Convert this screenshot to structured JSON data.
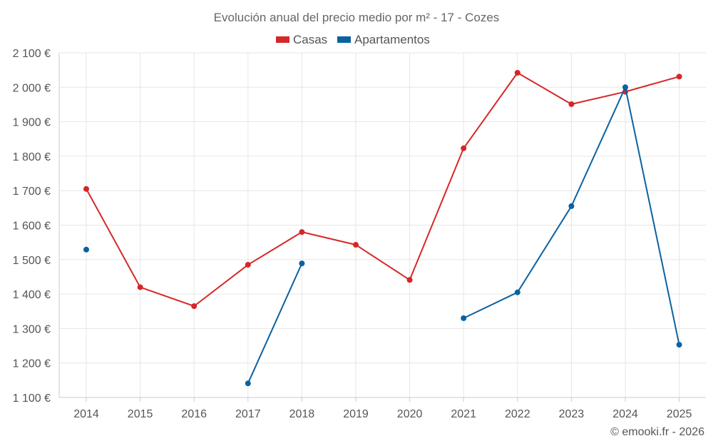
{
  "chart_data": {
    "type": "line",
    "title": "Evolución anual del precio medio por m² - 17 - Cozes",
    "categories": [
      "2014",
      "2015",
      "2016",
      "2017",
      "2018",
      "2019",
      "2020",
      "2021",
      "2022",
      "2023",
      "2024",
      "2025"
    ],
    "series": [
      {
        "name": "Casas",
        "color": "#d62728",
        "values": [
          1705,
          1420,
          1365,
          1485,
          1580,
          1543,
          1441,
          1823,
          2042,
          1951,
          1987,
          2031
        ]
      },
      {
        "name": "Apartamentos",
        "color": "#0a62a0",
        "values": [
          1529,
          null,
          null,
          1141,
          1489,
          null,
          null,
          1330,
          1405,
          1655,
          2000,
          1253
        ]
      }
    ],
    "y_ticks": [
      {
        "value": 1100,
        "label": "1 100 €"
      },
      {
        "value": 1200,
        "label": "1 200 €"
      },
      {
        "value": 1300,
        "label": "1 300 €"
      },
      {
        "value": 1400,
        "label": "1 400 €"
      },
      {
        "value": 1500,
        "label": "1 500 €"
      },
      {
        "value": 1600,
        "label": "1 600 €"
      },
      {
        "value": 1700,
        "label": "1 700 €"
      },
      {
        "value": 1800,
        "label": "1 800 €"
      },
      {
        "value": 1900,
        "label": "1 900 €"
      },
      {
        "value": 2000,
        "label": "2 000 €"
      },
      {
        "value": 2100,
        "label": "2 100 €"
      }
    ],
    "ylim": [
      1100,
      2100
    ],
    "xlabel": "",
    "ylabel": "",
    "grid": true,
    "legend_position": "top-center"
  },
  "copyright": "© emooki.fr - 2026"
}
